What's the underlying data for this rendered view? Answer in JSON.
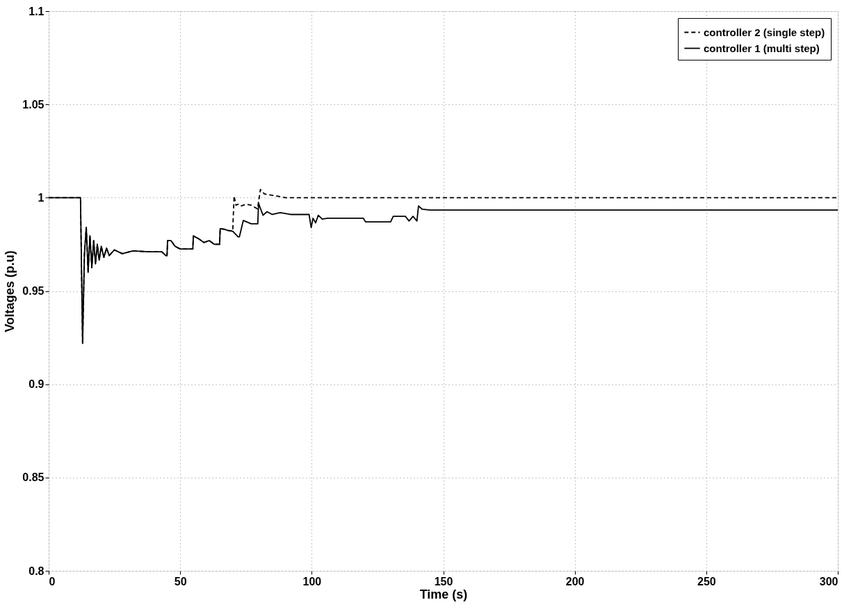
{
  "chart_data": {
    "type": "line",
    "xlabel": "Time (s)",
    "ylabel": "Voltages (p.u)",
    "xlim": [
      0,
      300
    ],
    "xticks": [
      0,
      50,
      100,
      150,
      200,
      250,
      300
    ],
    "ylim": [
      0.8,
      1.1
    ],
    "yticks": [
      0.8,
      0.85,
      0.9,
      0.95,
      1,
      1.05,
      1.1
    ],
    "grid": true,
    "legend": "top right",
    "series": [
      {
        "name": "controller 2 (single step)",
        "color": "#000000",
        "line_style": "dashed",
        "x": [
          0,
          12.1,
          12.9,
          13.6,
          14.3,
          15.0,
          15.7,
          16.4,
          17.1,
          17.8,
          18.5,
          19.2,
          20,
          21,
          22,
          23,
          25,
          28,
          32,
          38,
          43,
          44.5,
          45,
          45.2,
          46.5,
          48,
          50,
          54.8,
          55,
          57,
          59,
          61,
          63,
          65,
          65.2,
          67,
          68,
          70,
          70.1,
          70.5,
          71.2,
          72,
          73,
          75,
          77,
          79.4,
          80.5,
          82,
          84,
          87,
          90,
          300
        ],
        "values": [
          1,
          1,
          0.922,
          0.97,
          0.984,
          0.96,
          0.9796,
          0.9625,
          0.977,
          0.9645,
          0.975,
          0.9665,
          0.974,
          0.968,
          0.973,
          0.969,
          0.972,
          0.97,
          0.9715,
          0.971,
          0.971,
          0.969,
          0.969,
          0.977,
          0.977,
          0.974,
          0.9725,
          0.9725,
          0.9795,
          0.978,
          0.976,
          0.977,
          0.975,
          0.975,
          0.9834,
          0.983,
          0.9825,
          0.982,
          0.987,
          1.001,
          0.996,
          0.9965,
          0.9955,
          0.9965,
          0.996,
          0.994,
          1.0044,
          1.002,
          1.0015,
          1.0008,
          1.0,
          1.0
        ]
      },
      {
        "name": "controller 1 (multi step)",
        "color": "#000000",
        "line_style": "solid",
        "x": [
          0,
          12.1,
          12.9,
          13.6,
          14.3,
          15.0,
          15.7,
          16.4,
          17.1,
          17.8,
          18.5,
          19.2,
          20,
          21,
          22,
          23,
          25,
          28,
          32,
          38,
          43,
          44.5,
          45,
          45.2,
          46.5,
          48,
          50,
          54.8,
          55,
          57,
          59,
          61,
          63,
          65,
          65.2,
          67,
          68,
          70,
          72,
          72.5,
          74,
          77,
          79.5,
          79.8,
          80.3,
          81.5,
          83,
          85,
          88,
          92,
          96,
          99,
          99.8,
          100.5,
          101.5,
          102.5,
          104,
          106,
          110,
          115,
          119.6,
          120.5,
          125,
          130,
          131,
          135.6,
          137,
          138.5,
          140,
          140.6,
          142,
          145,
          150,
          200,
          250,
          300
        ],
        "values": [
          1,
          1,
          0.922,
          0.97,
          0.984,
          0.96,
          0.9796,
          0.9625,
          0.977,
          0.9645,
          0.975,
          0.9665,
          0.974,
          0.968,
          0.973,
          0.969,
          0.972,
          0.97,
          0.9715,
          0.971,
          0.971,
          0.969,
          0.969,
          0.977,
          0.977,
          0.974,
          0.9725,
          0.9725,
          0.9795,
          0.978,
          0.976,
          0.977,
          0.975,
          0.975,
          0.9834,
          0.983,
          0.9825,
          0.982,
          0.979,
          0.979,
          0.9878,
          0.986,
          0.986,
          0.997,
          0.995,
          0.9906,
          0.9925,
          0.991,
          0.992,
          0.991,
          0.991,
          0.991,
          0.984,
          0.989,
          0.9865,
          0.9906,
          0.9885,
          0.989,
          0.989,
          0.989,
          0.989,
          0.987,
          0.987,
          0.987,
          0.99,
          0.99,
          0.9875,
          0.99,
          0.9875,
          0.9956,
          0.9938,
          0.9934,
          0.9934,
          0.9934,
          0.9934,
          0.9934
        ]
      }
    ]
  }
}
